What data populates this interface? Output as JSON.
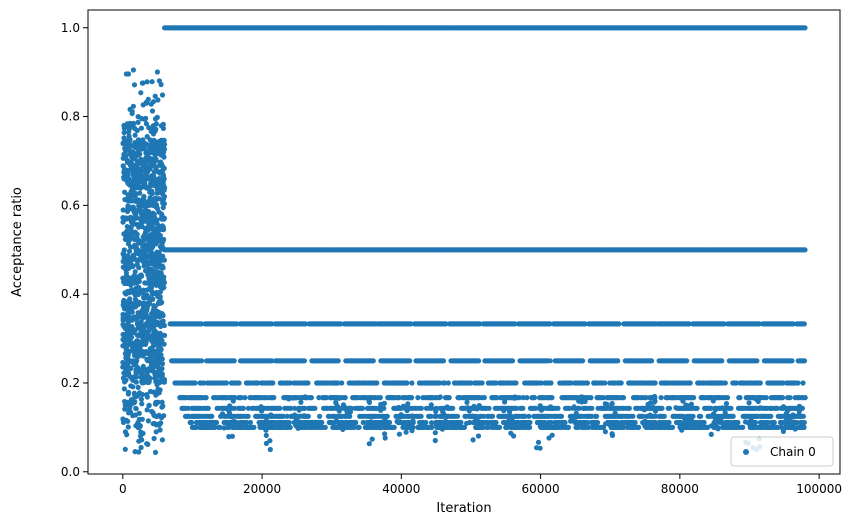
{
  "chart_data": {
    "type": "scatter",
    "xlabel": "Iteration",
    "ylabel": "Acceptance ratio",
    "xlim": [
      -5000,
      103000
    ],
    "ylim": [
      -0.005,
      1.04
    ],
    "x_ticks": [
      0,
      20000,
      40000,
      60000,
      80000,
      100000
    ],
    "x_tick_labels": [
      "0",
      "20000",
      "40000",
      "60000",
      "80000",
      "100000"
    ],
    "y_ticks": [
      0.0,
      0.2,
      0.4,
      0.6,
      0.8,
      1.0
    ],
    "y_tick_labels": [
      "0.0",
      "0.2",
      "0.4",
      "0.6",
      "0.8",
      "1.0"
    ],
    "grid": false,
    "legend": {
      "position": "lower-right",
      "entries": [
        "Chain 0"
      ]
    },
    "series": [
      {
        "name": "Chain 0",
        "color": "#1f77b4",
        "marker": "circle",
        "burn_in_cloud": {
          "x_range": [
            0,
            6000
          ],
          "y_range": [
            0.04,
            0.905
          ]
        },
        "levels": [
          {
            "y": 1.0,
            "x_range": [
              6000,
              98000
            ]
          },
          {
            "y": 0.5,
            "x_range": [
              6000,
              98000
            ]
          },
          {
            "y": 0.333,
            "x_range": [
              6800,
              98000
            ]
          },
          {
            "y": 0.25,
            "x_range": [
              7000,
              98000
            ]
          },
          {
            "y": 0.2,
            "x_range": [
              7500,
              98000
            ]
          },
          {
            "y": 0.167,
            "x_range": [
              8000,
              98000
            ]
          },
          {
            "y": 0.143,
            "x_range": [
              8500,
              98000
            ]
          },
          {
            "y": 0.125,
            "x_range": [
              9000,
              98000
            ]
          },
          {
            "y": 0.111,
            "x_range": [
              9500,
              98000
            ]
          },
          {
            "y": 0.1,
            "x_range": [
              10000,
              98000
            ]
          }
        ],
        "spikes": [
          {
            "x": 15500,
            "min_y": 0.065
          },
          {
            "x": 20500,
            "min_y": 0.045
          },
          {
            "x": 25000,
            "min_y": 0.08
          },
          {
            "x": 31500,
            "min_y": 0.09
          },
          {
            "x": 36500,
            "min_y": 0.06
          },
          {
            "x": 40500,
            "min_y": 0.07
          },
          {
            "x": 45500,
            "min_y": 0.06
          },
          {
            "x": 50500,
            "min_y": 0.07
          },
          {
            "x": 55500,
            "min_y": 0.07
          },
          {
            "x": 60500,
            "min_y": 0.045
          },
          {
            "x": 65500,
            "min_y": 0.09
          },
          {
            "x": 70000,
            "min_y": 0.08
          },
          {
            "x": 75500,
            "min_y": 0.1
          },
          {
            "x": 80500,
            "min_y": 0.09
          },
          {
            "x": 85500,
            "min_y": 0.08
          },
          {
            "x": 90500,
            "min_y": 0.05
          },
          {
            "x": 96000,
            "min_y": 0.09
          }
        ]
      }
    ]
  }
}
